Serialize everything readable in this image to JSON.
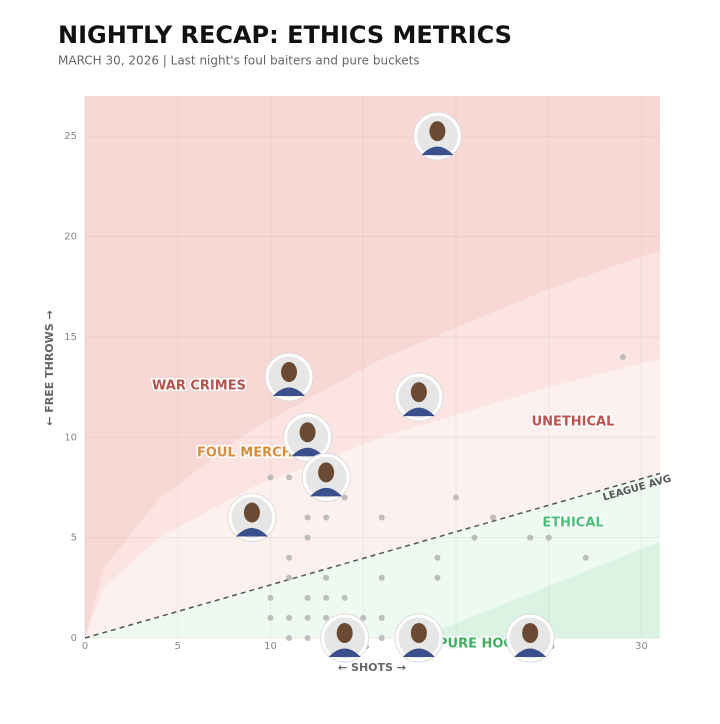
{
  "chart_data": {
    "type": "scatter",
    "title": "NIGHTLY RECAP: ETHICS METRICS",
    "subtitle": "MARCH 30, 2026 | Last night's foul baiters and pure buckets",
    "x_label": "← SHOTS →",
    "y_label": "← FREE THROWS →",
    "xlim": [
      0,
      31
    ],
    "ylim": [
      0,
      27
    ],
    "xticks": [
      0,
      5,
      10,
      15,
      20,
      25,
      30
    ],
    "yticks": [
      0,
      5,
      10,
      15,
      20,
      25
    ],
    "grid": true,
    "zones": [
      {
        "x": [
          0,
          1,
          4,
          9,
          16,
          25,
          31
        ],
        "y": [
          0,
          2.5,
          5,
          7.5,
          10,
          12.5,
          13.9
        ],
        "color": "#fbe4e1",
        "fill_to": "top"
      },
      {
        "x": [
          0,
          1,
          4,
          9,
          16,
          25,
          31
        ],
        "y": [
          0,
          3.47,
          6.94,
          10.4,
          13.9,
          17.4,
          19.3
        ],
        "color": "#f8d8d4",
        "fill_to": "top"
      },
      {
        "x": [
          0,
          31
        ],
        "y": [
          0,
          8.2
        ],
        "color": "#eef9f1",
        "fill_to": "bottom",
        "label": "LEAGUE AVG",
        "line_color": "#555555"
      },
      {
        "x": [
          18,
          31
        ],
        "y": [
          0,
          4.8
        ],
        "color": "#dbf3e2",
        "fill_to": "bottom"
      }
    ],
    "annotations": [
      {
        "text": "WAR CRIMES",
        "color": "#b5544c"
      },
      {
        "text": "FOUL MERCHANT",
        "color": "#d98c3a"
      },
      {
        "text": "UNETHICAL",
        "color": "#c0504d"
      },
      {
        "text": "ETHICAL",
        "color": "#4cbf7a"
      },
      {
        "text": "PURE HOOPS",
        "color": "#3fae63"
      }
    ],
    "series": [
      {
        "color": "#b0b0b0",
        "x": [
          29,
          10,
          11,
          12,
          13,
          16,
          10,
          14,
          20,
          22,
          21,
          24,
          25,
          12,
          11,
          19,
          27,
          11,
          16,
          19,
          13,
          10,
          12,
          13,
          14,
          10,
          11,
          12,
          13,
          14,
          15,
          16,
          11,
          12,
          13,
          16,
          17,
          18
        ],
        "values": [
          14,
          8,
          8,
          6,
          6,
          6,
          6,
          7,
          7,
          6,
          5,
          5,
          5,
          5,
          4,
          4,
          4,
          3,
          3,
          3,
          3,
          2,
          2,
          2,
          2,
          1,
          1,
          1,
          1,
          1,
          1,
          1,
          0,
          0,
          0,
          0,
          0,
          0
        ]
      },
      {
        "color": "#e6e6e6",
        "x": [
          19,
          11,
          18,
          12,
          13,
          9,
          14,
          18,
          24
        ],
        "values": [
          25,
          13,
          12,
          10,
          8,
          6,
          0,
          0,
          0
        ]
      }
    ]
  }
}
